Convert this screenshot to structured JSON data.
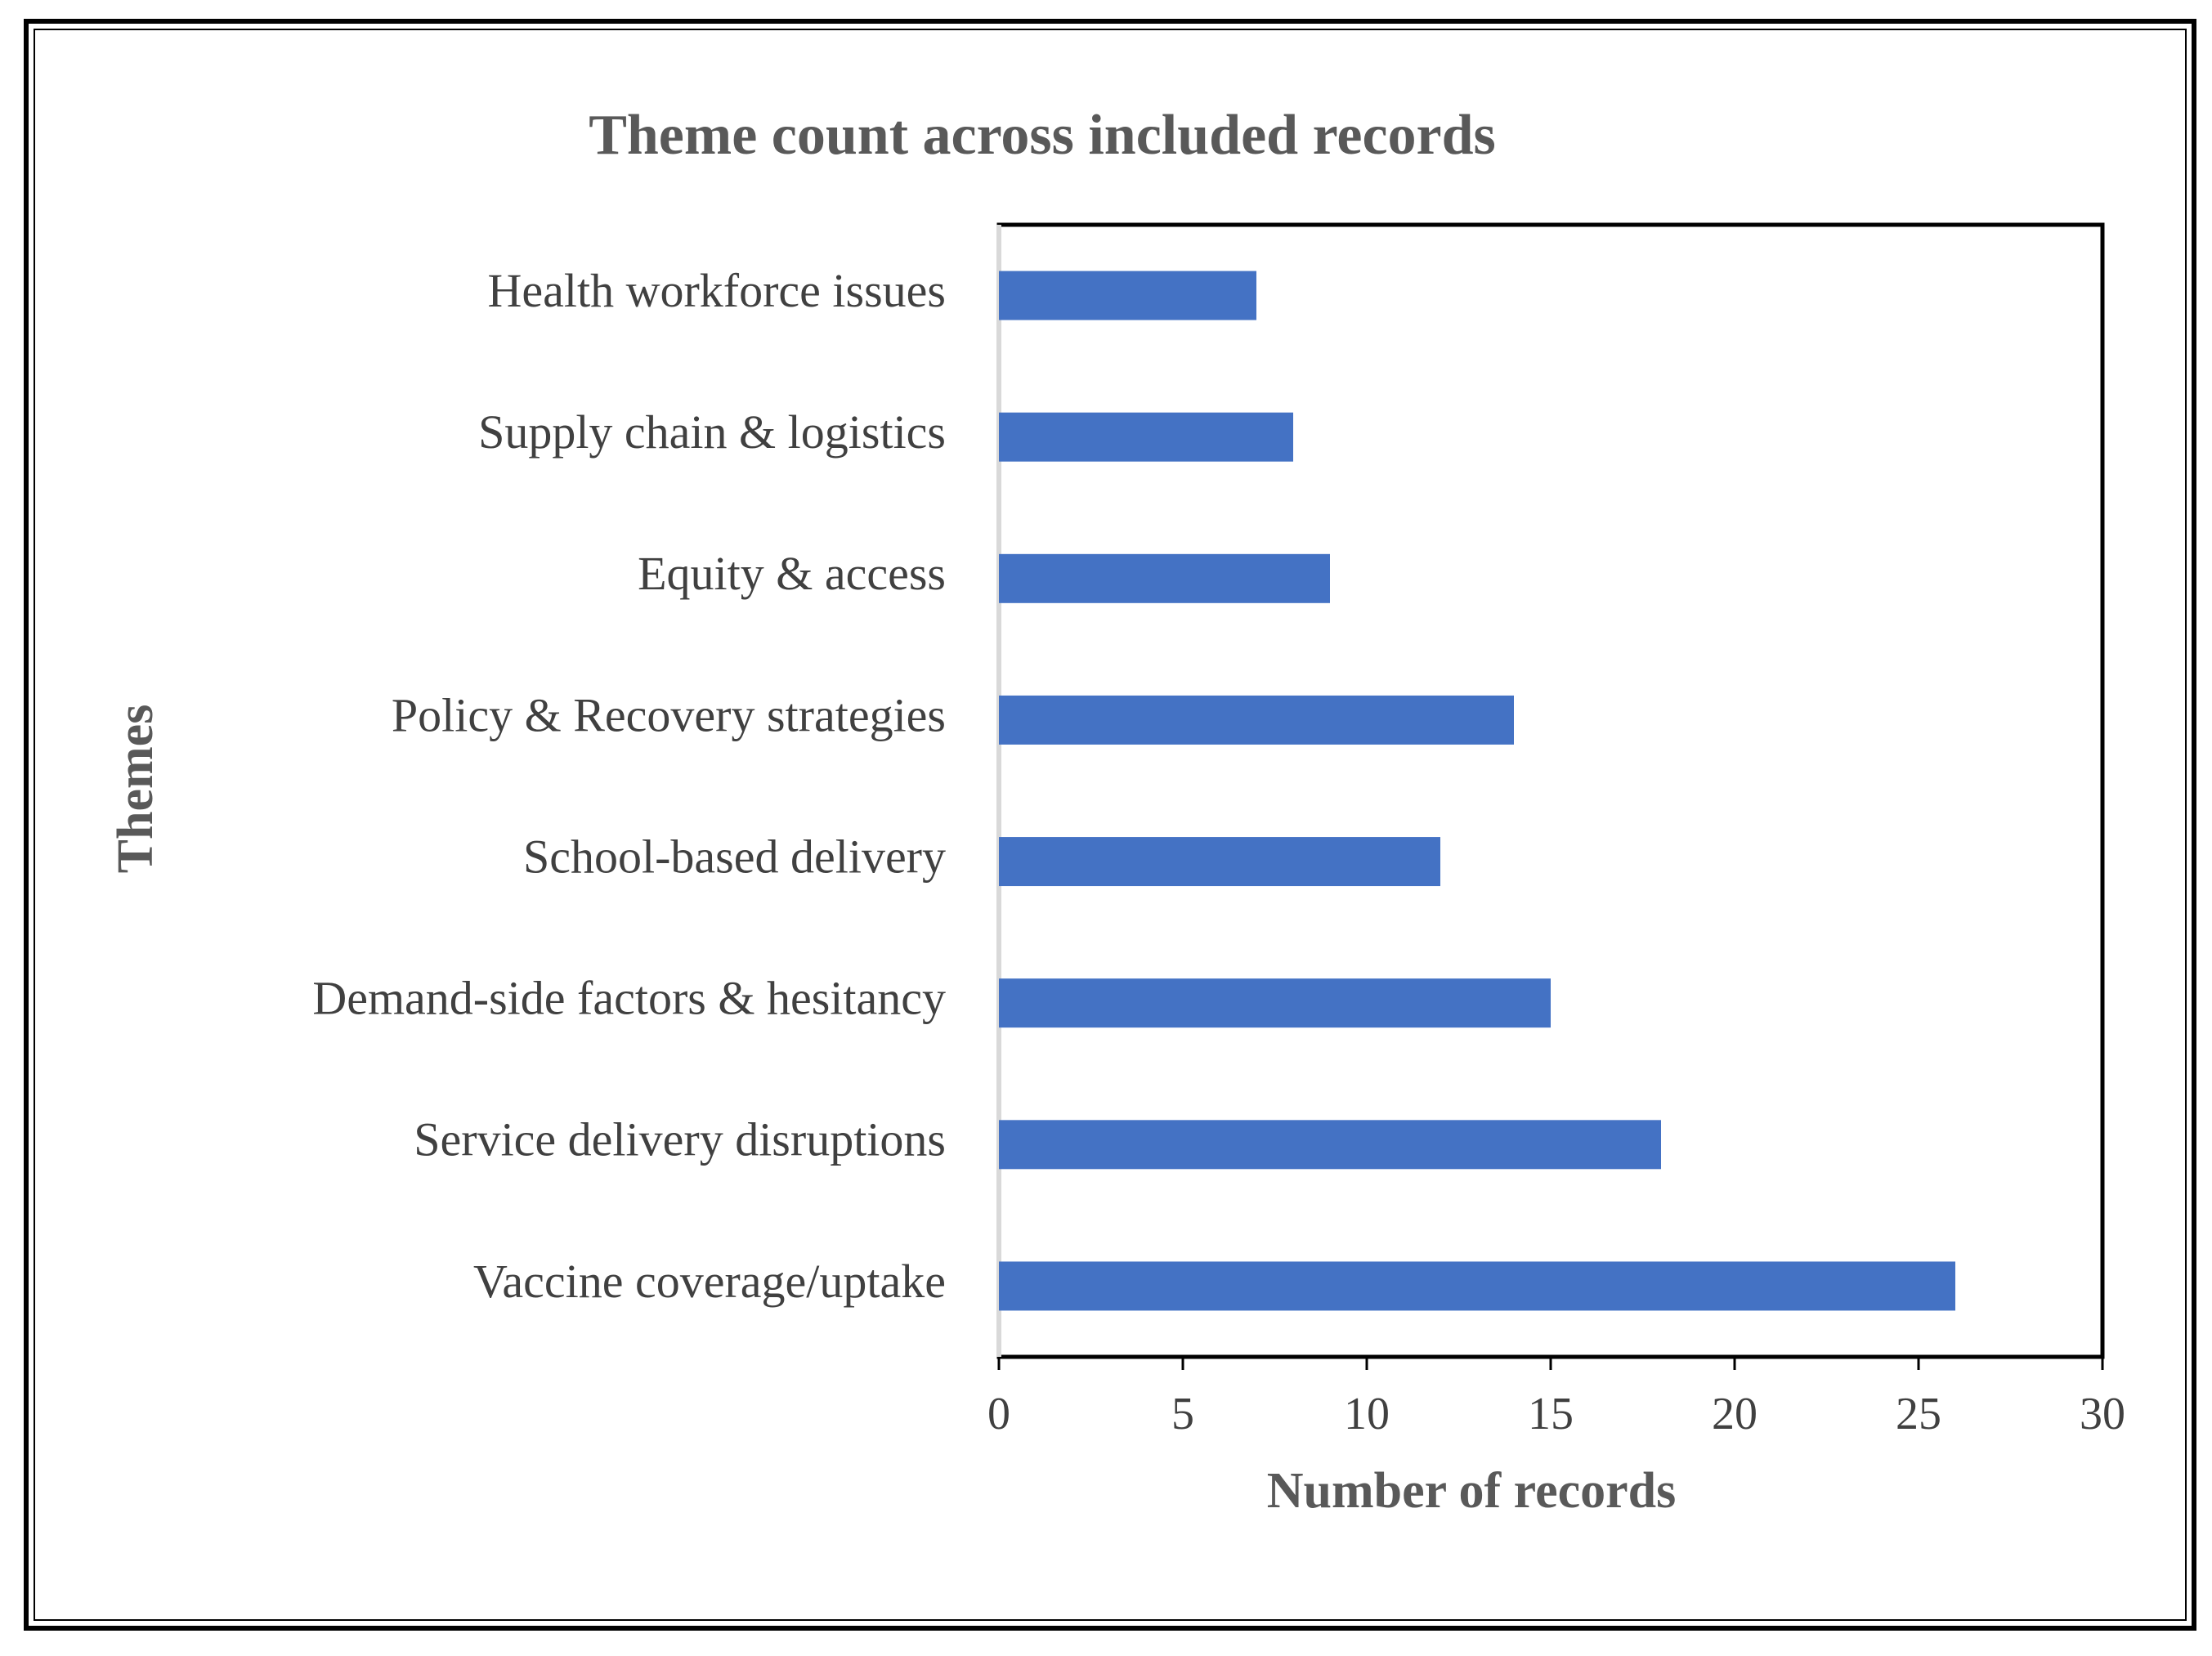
{
  "chart_data": {
    "type": "bar",
    "orientation": "horizontal",
    "title": "Theme count across included records",
    "x_label": "Number of records",
    "y_label": "Themes",
    "categories": [
      "Health workforce issues",
      "Supply chain & logistics",
      "Equity & access",
      "Policy & Recovery strategies",
      "School-based delivery",
      "Demand-side factors & hesitancy",
      "Service delivery disruptions",
      "Vaccine coverage/uptake"
    ],
    "values": [
      7,
      8,
      9,
      14,
      12,
      15,
      18,
      26
    ],
    "color": "#4472c4",
    "xlim": [
      0,
      30
    ],
    "xticks": [
      0,
      5,
      10,
      15,
      20,
      25,
      30
    ],
    "grid": false
  }
}
